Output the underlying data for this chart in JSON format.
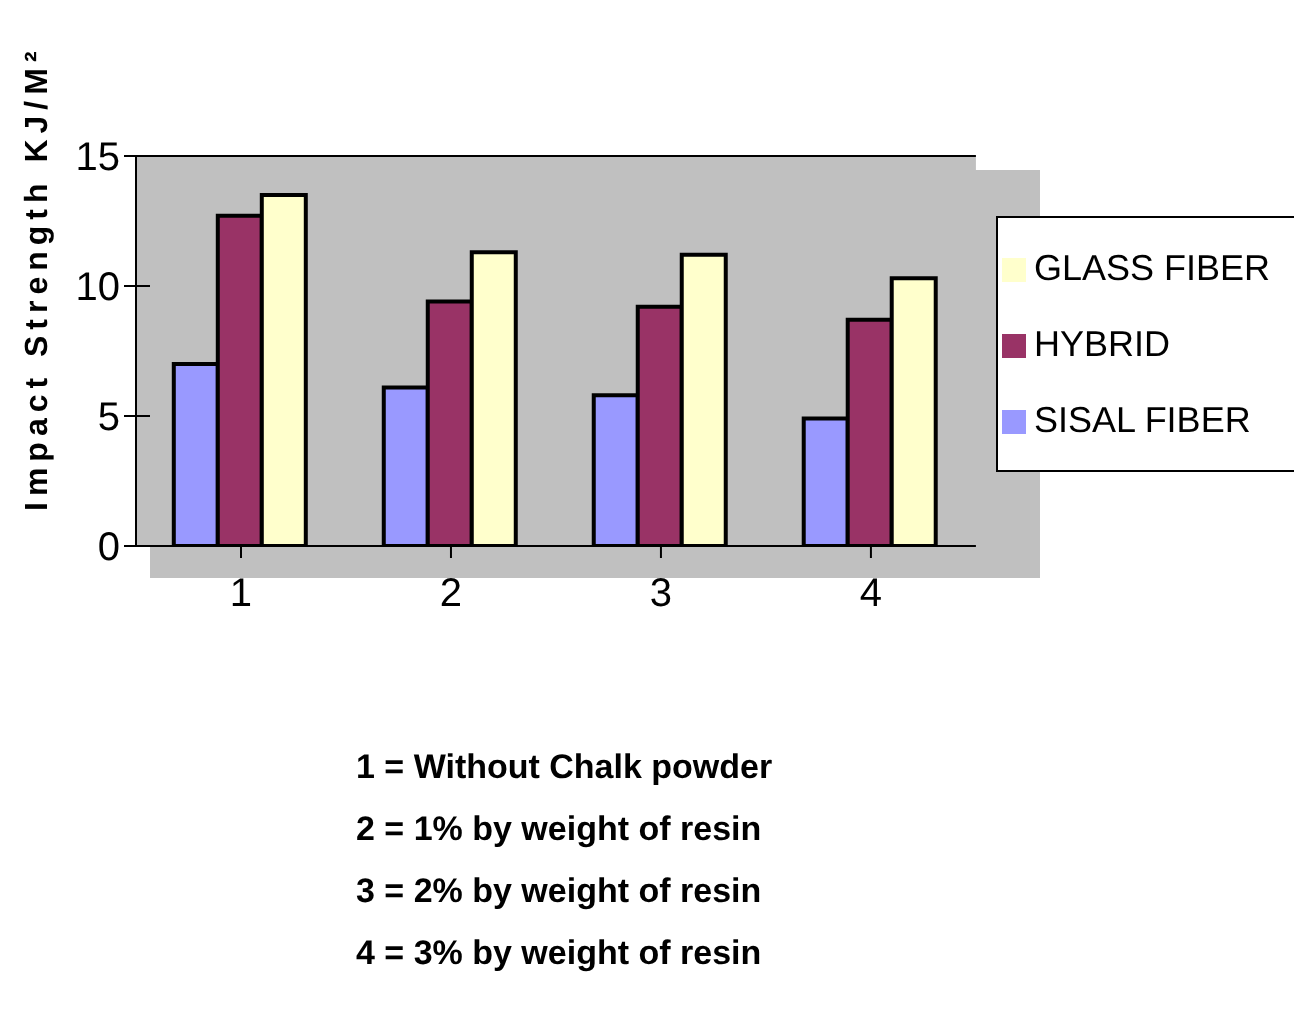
{
  "chart_data": {
    "type": "bar",
    "ylabel": "Impact Strength KJ/M²",
    "categories": [
      "1",
      "2",
      "3",
      "4"
    ],
    "series": [
      {
        "name": "SISAL FIBER",
        "color": "#9999ff",
        "values": [
          7.0,
          6.1,
          5.8,
          4.9
        ]
      },
      {
        "name": "HYBRID",
        "color": "#993366",
        "values": [
          12.7,
          9.4,
          9.2,
          8.7
        ]
      },
      {
        "name": "GLASS FIBER",
        "color": "#ffffcc",
        "values": [
          13.5,
          11.3,
          11.2,
          10.3
        ]
      }
    ],
    "ylim": [
      0,
      15
    ],
    "yticks": [
      0,
      5,
      10,
      15
    ],
    "grid": "y",
    "legend": "right",
    "annotations": [
      "1 = Without Chalk powder",
      "2 = 1% by weight of resin",
      "3 = 2% by weight of resin",
      "4 = 3% by weight of resin"
    ]
  }
}
